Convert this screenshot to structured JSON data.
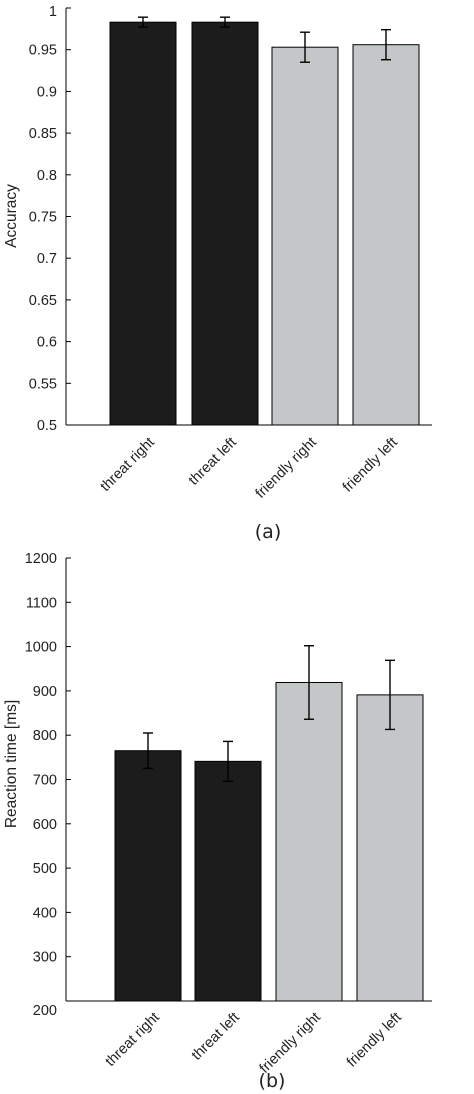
{
  "chart_data": [
    {
      "type": "bar",
      "panel_label": "(a)",
      "ylabel": "Accuracy",
      "categories": [
        "threat right",
        "threat left",
        "friendly right",
        "friendly left"
      ],
      "values": [
        0.983,
        0.983,
        0.953,
        0.956
      ],
      "error": [
        0.006,
        0.006,
        0.018,
        0.018
      ],
      "colors": [
        "#1c1c1c",
        "#1c1c1c",
        "#c3c7c8",
        "#c3c7c8"
      ],
      "ylim": [
        0.5,
        1
      ],
      "yticks": [
        0.5,
        0.55,
        0.6,
        0.65,
        0.7,
        0.75,
        0.8,
        0.85,
        0.9,
        0.95,
        1
      ],
      "ytick_labels": [
        "0.5",
        "0.55",
        "0.6",
        "0.65",
        "0.7",
        "0.75",
        "0.8",
        "0.85",
        "0.9",
        "0.95",
        "1"
      ],
      "grid": false
    },
    {
      "type": "bar",
      "panel_label": "(b)",
      "ylabel": "Reaction time [ms]",
      "categories": [
        "threat right",
        "threat left",
        "friendly right",
        "friendly left"
      ],
      "values": [
        765,
        741,
        919,
        891
      ],
      "error": [
        40,
        45,
        83,
        78
      ],
      "colors": [
        "#1c1c1c",
        "#1c1c1c",
        "#c3c7c8",
        "#c3c7c8"
      ],
      "ylim": [
        200,
        1200
      ],
      "yticks": [
        200,
        300,
        400,
        500,
        600,
        700,
        800,
        900,
        1000,
        1100,
        1200
      ],
      "ytick_labels": [
        "200",
        "300",
        "400",
        "500",
        "600",
        "700",
        "800",
        "900",
        "1000",
        "1100",
        "1200"
      ],
      "grid": false
    }
  ]
}
